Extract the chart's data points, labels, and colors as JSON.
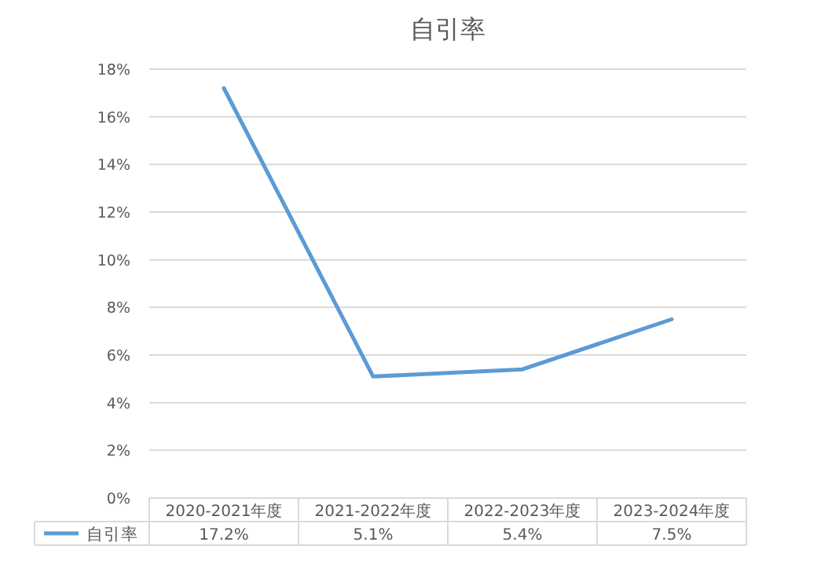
{
  "chart_data": {
    "type": "line",
    "title": "自引率",
    "categories": [
      "2020-2021年度",
      "2021-2022年度",
      "2022-2023年度",
      "2023-2024年度"
    ],
    "series": [
      {
        "name": "自引率",
        "color": "#5b9bd5",
        "values": [
          17.2,
          5.1,
          5.4,
          7.5
        ],
        "value_labels": [
          "17.2%",
          "5.1%",
          "5.4%",
          "7.5%"
        ]
      }
    ],
    "ylim": [
      0,
      18
    ],
    "yticks": [
      {
        "value": 0,
        "label": "0%"
      },
      {
        "value": 2,
        "label": "2%"
      },
      {
        "value": 4,
        "label": "4%"
      },
      {
        "value": 6,
        "label": "6%"
      },
      {
        "value": 8,
        "label": "8%"
      },
      {
        "value": 10,
        "label": "10%"
      },
      {
        "value": 12,
        "label": "12%"
      },
      {
        "value": 14,
        "label": "14%"
      },
      {
        "value": 16,
        "label": "16%"
      },
      {
        "value": 18,
        "label": "18%"
      }
    ],
    "grid": "y",
    "legend": "bottom",
    "marker": "none",
    "line_style": "solid"
  }
}
